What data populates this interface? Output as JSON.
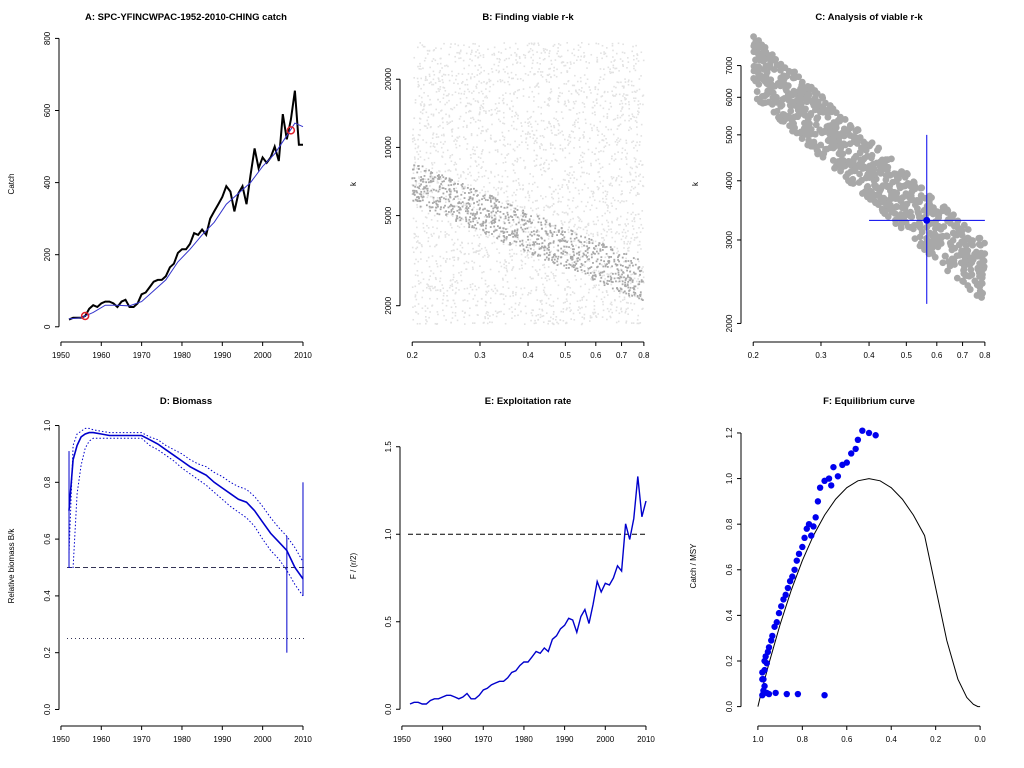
{
  "chart_data": [
    {
      "type": "line",
      "title": "A:  SPC-YFINCWPAC-1952-2010-CHING catch",
      "xlabel": "",
      "ylabel": "Catch",
      "xlim": [
        1952,
        2010
      ],
      "ylim": [
        0,
        800
      ],
      "x_ticks": [
        1950,
        1960,
        1970,
        1980,
        1990,
        2000,
        2010
      ],
      "y_ticks": [
        0,
        200,
        400,
        600,
        800
      ],
      "series": [
        {
          "role": "catch",
          "color": "#000000",
          "x": [
            1952,
            1953,
            1954,
            1955,
            1956,
            1957,
            1958,
            1959,
            1960,
            1961,
            1962,
            1963,
            1964,
            1965,
            1966,
            1967,
            1968,
            1969,
            1970,
            1971,
            1972,
            1973,
            1974,
            1975,
            1976,
            1977,
            1978,
            1979,
            1980,
            1981,
            1982,
            1983,
            1984,
            1985,
            1986,
            1987,
            1988,
            1989,
            1990,
            1991,
            1992,
            1993,
            1994,
            1995,
            1996,
            1997,
            1998,
            1999,
            2000,
            2001,
            2002,
            2003,
            2004,
            2005,
            2006,
            2007,
            2008,
            2009,
            2010
          ],
          "y": [
            20,
            25,
            25,
            25,
            30,
            50,
            60,
            55,
            65,
            70,
            70,
            65,
            55,
            70,
            75,
            55,
            55,
            65,
            90,
            95,
            110,
            125,
            130,
            130,
            140,
            165,
            175,
            205,
            215,
            215,
            230,
            260,
            255,
            270,
            255,
            300,
            320,
            340,
            360,
            390,
            375,
            320,
            370,
            390,
            340,
            420,
            495,
            440,
            470,
            455,
            470,
            500,
            460,
            590,
            520,
            575,
            655,
            505,
            505
          ]
        },
        {
          "role": "smoothed",
          "color": "#3333cc",
          "x": [
            1952,
            1955,
            1958,
            1961,
            1964,
            1967,
            1970,
            1973,
            1976,
            1979,
            1982,
            1985,
            1988,
            1991,
            1994,
            1997,
            2000,
            2003,
            2006,
            2008,
            2010
          ],
          "y": [
            22,
            25,
            40,
            60,
            60,
            58,
            70,
            100,
            130,
            180,
            215,
            255,
            290,
            340,
            370,
            400,
            445,
            480,
            530,
            565,
            555
          ]
        }
      ],
      "markers": [
        {
          "x": 1956,
          "y": 30
        },
        {
          "x": 2007,
          "y": 545
        }
      ],
      "marker_color": "#e0202a"
    },
    {
      "type": "scatter",
      "title": "B: Finding viable r-k",
      "xlabel": "",
      "ylabel": "k",
      "x_scale": "log",
      "y_scale": "log",
      "xlim": [
        0.2,
        0.8
      ],
      "ylim": [
        1600,
        30000
      ],
      "x_ticks": [
        0.2,
        0.3,
        0.4,
        0.5,
        0.6,
        0.7,
        0.8
      ],
      "y_ticks": [
        2000,
        5000,
        10000,
        20000
      ],
      "all_points_color": "#e2e2e2",
      "viable_points_color": "#a8a8a8"
    },
    {
      "type": "scatter",
      "title": "C: Analysis of viable r-k",
      "xlabel": "",
      "ylabel": "k",
      "x_scale": "log",
      "y_scale": "log",
      "xlim": [
        0.2,
        0.8
      ],
      "ylim": [
        2000,
        7800
      ],
      "x_ticks": [
        0.2,
        0.3,
        0.4,
        0.5,
        0.6,
        0.7,
        0.8
      ],
      "y_ticks": [
        2000,
        3000,
        4000,
        5000,
        6000,
        7000
      ],
      "points_color": "#a8a8a8",
      "estimate": {
        "r": 0.565,
        "k": 3300,
        "r_ci": [
          0.4,
          0.8
        ],
        "k_ci": [
          2200,
          5000
        ]
      },
      "estimate_color": "#0000ee"
    },
    {
      "type": "line",
      "title": "D: Biomass",
      "xlabel": "",
      "ylabel": "Relative biomass B/k",
      "xlim": [
        1952,
        2010
      ],
      "ylim": [
        0,
        1
      ],
      "x_ticks": [
        1950,
        1960,
        1970,
        1980,
        1990,
        2000,
        2010
      ],
      "y_ticks": [
        0.0,
        0.2,
        0.4,
        0.6,
        0.8,
        1.0
      ],
      "y_tick_labels": [
        "0.0",
        "0.2",
        "0.4",
        "0.6",
        "0.8",
        "1.0"
      ],
      "x": [
        1952,
        1953,
        1954,
        1955,
        1956,
        1957,
        1958,
        1960,
        1962,
        1964,
        1966,
        1968,
        1970,
        1972,
        1974,
        1976,
        1978,
        1980,
        1982,
        1984,
        1986,
        1988,
        1990,
        1992,
        1994,
        1996,
        1998,
        2000,
        2002,
        2004,
        2006,
        2008,
        2010
      ],
      "median": [
        0.7,
        0.88,
        0.93,
        0.96,
        0.97,
        0.975,
        0.975,
        0.97,
        0.965,
        0.965,
        0.965,
        0.965,
        0.965,
        0.95,
        0.935,
        0.915,
        0.895,
        0.875,
        0.855,
        0.84,
        0.825,
        0.8,
        0.78,
        0.76,
        0.74,
        0.73,
        0.7,
        0.66,
        0.62,
        0.59,
        0.56,
        0.5,
        0.46
      ],
      "upper": [
        0.55,
        0.93,
        0.97,
        0.98,
        0.99,
        0.99,
        0.985,
        0.98,
        0.975,
        0.975,
        0.975,
        0.975,
        0.975,
        0.96,
        0.95,
        0.93,
        0.915,
        0.9,
        0.88,
        0.865,
        0.855,
        0.835,
        0.82,
        0.8,
        0.785,
        0.775,
        0.75,
        0.715,
        0.675,
        0.64,
        0.61,
        0.57,
        0.52
      ],
      "lower": [
        0.5,
        0.5,
        0.76,
        0.86,
        0.92,
        0.945,
        0.955,
        0.955,
        0.955,
        0.955,
        0.955,
        0.955,
        0.955,
        0.93,
        0.915,
        0.895,
        0.875,
        0.85,
        0.83,
        0.81,
        0.79,
        0.765,
        0.74,
        0.715,
        0.695,
        0.675,
        0.645,
        0.6,
        0.56,
        0.53,
        0.49,
        0.44,
        0.4
      ],
      "ref_lines": [
        {
          "y": 0.5,
          "style": "dashed",
          "color": "#333355"
        },
        {
          "y": 0.25,
          "style": "dotted",
          "color": "#333355"
        }
      ],
      "vertical_bars": [
        {
          "x": 1952,
          "y0": 0.5,
          "y1": 0.91
        },
        {
          "x": 2006,
          "y0": 0.2,
          "y1": 0.61
        },
        {
          "x": 2010,
          "y0": 0.4,
          "y1": 0.8
        }
      ],
      "color": "#0000cc"
    },
    {
      "type": "line",
      "title": "E: Exploitation rate",
      "xlabel": "",
      "ylabel": "F / (r/2)",
      "xlim": [
        1952,
        2010
      ],
      "ylim": [
        0,
        1.6
      ],
      "x_ticks": [
        1950,
        1960,
        1970,
        1980,
        1990,
        2000,
        2010
      ],
      "y_ticks": [
        0.0,
        0.5,
        1.0,
        1.5
      ],
      "y_tick_labels": [
        "0.0",
        "0.5",
        "1.0",
        "1.5"
      ],
      "x": [
        1952,
        1953,
        1954,
        1955,
        1956,
        1957,
        1958,
        1959,
        1960,
        1961,
        1962,
        1963,
        1964,
        1965,
        1966,
        1967,
        1968,
        1969,
        1970,
        1971,
        1972,
        1973,
        1974,
        1975,
        1976,
        1977,
        1978,
        1979,
        1980,
        1981,
        1982,
        1983,
        1984,
        1985,
        1986,
        1987,
        1988,
        1989,
        1990,
        1991,
        1992,
        1993,
        1994,
        1995,
        1996,
        1997,
        1998,
        1999,
        2000,
        2001,
        2002,
        2003,
        2004,
        2005,
        2006,
        2007,
        2008,
        2009,
        2010
      ],
      "y": [
        0.03,
        0.04,
        0.04,
        0.03,
        0.03,
        0.05,
        0.06,
        0.06,
        0.07,
        0.08,
        0.08,
        0.07,
        0.06,
        0.07,
        0.09,
        0.06,
        0.06,
        0.08,
        0.11,
        0.12,
        0.14,
        0.15,
        0.16,
        0.16,
        0.18,
        0.21,
        0.22,
        0.25,
        0.27,
        0.27,
        0.3,
        0.33,
        0.32,
        0.35,
        0.33,
        0.4,
        0.42,
        0.46,
        0.48,
        0.52,
        0.51,
        0.44,
        0.53,
        0.57,
        0.49,
        0.6,
        0.73,
        0.67,
        0.72,
        0.71,
        0.75,
        0.82,
        0.79,
        1.06,
        0.97,
        1.09,
        1.33,
        1.1,
        1.19
      ],
      "ref_lines": [
        {
          "y": 1.0,
          "style": "dashed",
          "color": "#000000"
        }
      ],
      "color": "#0000cc"
    },
    {
      "type": "scatter",
      "title": "F: Equilibrium curve",
      "xlabel": "",
      "ylabel": "Catch / MSY",
      "xlim": [
        1.0,
        0.0
      ],
      "ylim": [
        0,
        1.25
      ],
      "x_ticks": [
        1.0,
        0.8,
        0.6,
        0.4,
        0.2,
        0.0
      ],
      "x_tick_labels": [
        "1.0",
        "0.8",
        "0.6",
        "0.4",
        "0.2",
        "0.0"
      ],
      "y_ticks": [
        0.0,
        0.2,
        0.4,
        0.6,
        0.8,
        1.0,
        1.2
      ],
      "y_tick_labels": [
        "0.0",
        "0.2",
        "0.4",
        "0.6",
        "0.8",
        "1.0",
        "1.2"
      ],
      "curve": {
        "x": [
          1.0,
          0.98,
          0.95,
          0.9,
          0.85,
          0.8,
          0.75,
          0.7,
          0.65,
          0.6,
          0.55,
          0.5,
          0.45,
          0.4,
          0.35,
          0.3,
          0.25,
          0.2,
          0.15,
          0.1,
          0.06,
          0.03,
          0.01,
          0.0
        ],
        "y": [
          0.0,
          0.08,
          0.19,
          0.36,
          0.51,
          0.64,
          0.75,
          0.84,
          0.91,
          0.96,
          0.99,
          1.0,
          0.99,
          0.96,
          0.91,
          0.84,
          0.75,
          0.52,
          0.29,
          0.12,
          0.04,
          0.01,
          0.0,
          0.0
        ],
        "color": "#000000"
      },
      "points": {
        "x": [
          0.98,
          0.975,
          0.97,
          0.96,
          0.95,
          0.92,
          0.87,
          0.82,
          0.7,
          0.98,
          0.98,
          0.975,
          0.97,
          0.97,
          0.965,
          0.96,
          0.955,
          0.95,
          0.94,
          0.935,
          0.925,
          0.915,
          0.905,
          0.895,
          0.885,
          0.875,
          0.865,
          0.855,
          0.845,
          0.835,
          0.825,
          0.815,
          0.8,
          0.79,
          0.78,
          0.77,
          0.76,
          0.75,
          0.74,
          0.73,
          0.72,
          0.7,
          0.68,
          0.67,
          0.66,
          0.64,
          0.62,
          0.6,
          0.58,
          0.56,
          0.55,
          0.53,
          0.5,
          0.47
        ],
        "y": [
          0.05,
          0.07,
          0.09,
          0.06,
          0.055,
          0.06,
          0.055,
          0.055,
          0.05,
          0.12,
          0.15,
          0.12,
          0.16,
          0.2,
          0.22,
          0.19,
          0.24,
          0.26,
          0.29,
          0.31,
          0.35,
          0.37,
          0.41,
          0.44,
          0.47,
          0.49,
          0.52,
          0.55,
          0.57,
          0.6,
          0.64,
          0.67,
          0.7,
          0.74,
          0.78,
          0.8,
          0.75,
          0.79,
          0.83,
          0.9,
          0.96,
          0.99,
          1.0,
          0.97,
          1.05,
          1.01,
          1.06,
          1.07,
          1.11,
          1.13,
          1.17,
          1.21,
          1.2,
          1.19
        ],
        "color": "#0000ee"
      }
    }
  ]
}
